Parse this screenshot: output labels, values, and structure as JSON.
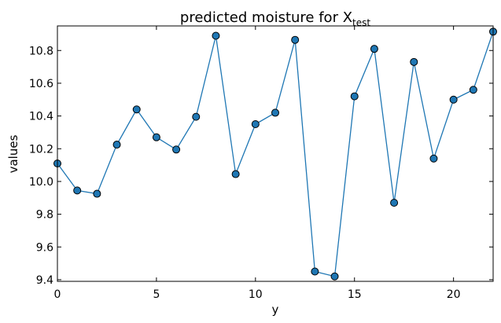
{
  "chart_data": {
    "type": "line",
    "title": "predicted moisture for X",
    "title_subscript": "test",
    "xlabel": "y",
    "ylabel": "values",
    "xlim": [
      0,
      22
    ],
    "ylim": [
      9.39,
      10.95
    ],
    "xticks": [
      0,
      5,
      10,
      15,
      20
    ],
    "yticks": [
      9.4,
      9.6,
      9.8,
      10.0,
      10.2,
      10.4,
      10.6,
      10.8
    ],
    "xtick_labels": [
      "0",
      "5",
      "10",
      "15",
      "20"
    ],
    "ytick_labels": [
      "9.4",
      "9.6",
      "9.8",
      "10.0",
      "10.2",
      "10.4",
      "10.6",
      "10.8"
    ],
    "grid": false,
    "line_color": "#1f77b4",
    "marker_color": "#1f77b4",
    "marker_edge_color": "#000000",
    "series": [
      {
        "x": [
          0,
          1,
          2,
          3,
          4,
          5,
          6,
          7,
          8,
          9,
          10,
          11,
          12,
          13,
          14,
          15,
          16,
          17,
          18,
          19,
          20,
          21,
          22
        ],
        "values": [
          10.11,
          9.945,
          9.925,
          10.225,
          10.44,
          10.27,
          10.195,
          10.395,
          10.89,
          10.045,
          10.35,
          10.42,
          10.865,
          9.45,
          9.42,
          10.52,
          10.81,
          9.87,
          10.73,
          10.14,
          10.5,
          10.56,
          10.915
        ]
      }
    ]
  }
}
